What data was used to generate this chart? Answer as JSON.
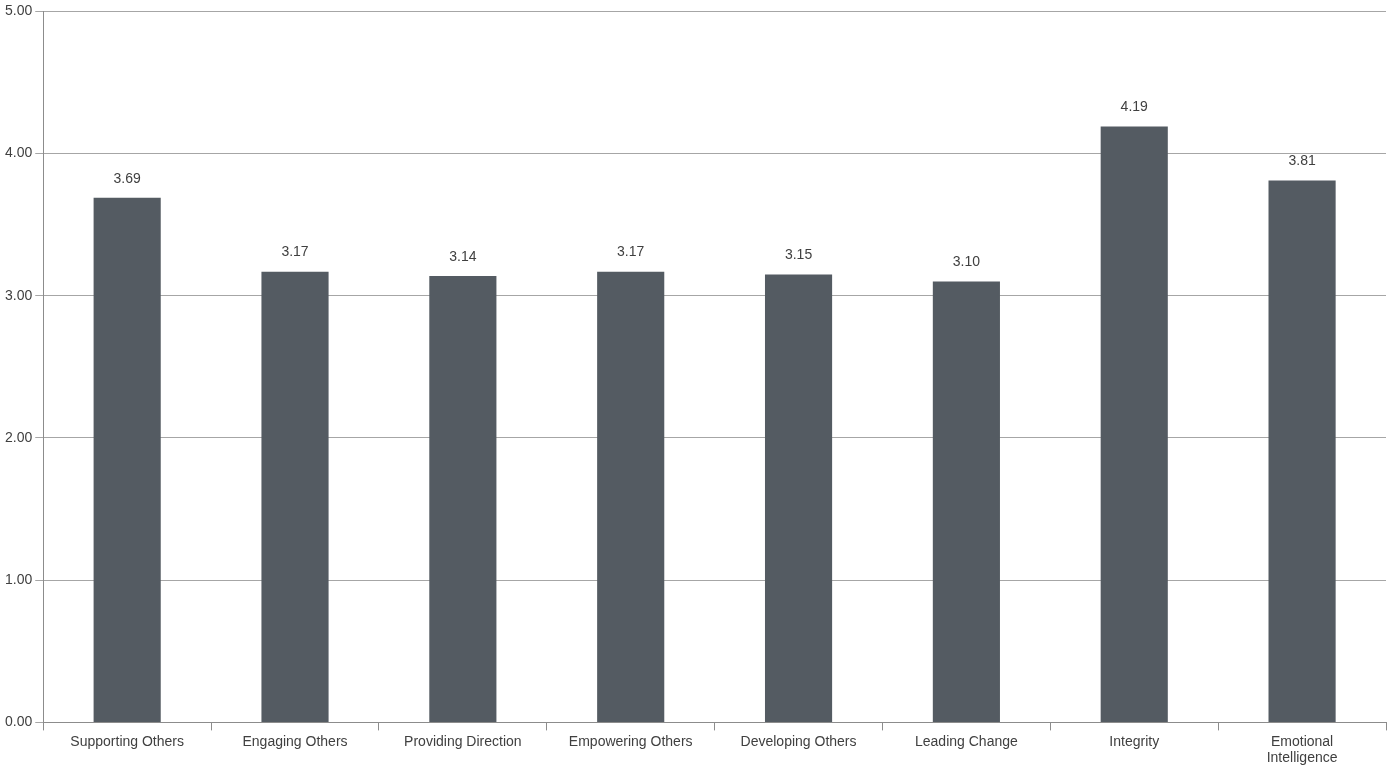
{
  "chart_data": {
    "type": "bar",
    "categories": [
      "Supporting Others",
      "Engaging Others",
      "Providing Direction",
      "Empowering Others",
      "Developing Others",
      "Leading Change",
      "Integrity",
      "Emotional Intelligence"
    ],
    "values": [
      3.69,
      3.17,
      3.14,
      3.17,
      3.15,
      3.1,
      4.19,
      3.81
    ],
    "value_labels": [
      "3.69",
      "3.17",
      "3.14",
      "3.17",
      "3.15",
      "3.10",
      "4.19",
      "3.81"
    ],
    "color": "#545b62",
    "ylim": [
      0,
      5
    ],
    "yticks": [
      {
        "value": 0,
        "label": "0.00"
      },
      {
        "value": 1,
        "label": "1.00"
      },
      {
        "value": 2,
        "label": "2.00"
      },
      {
        "value": 3,
        "label": "3.00"
      },
      {
        "value": 4,
        "label": "4.00"
      },
      {
        "value": 5,
        "label": "5.00"
      }
    ],
    "grid": "y"
  }
}
